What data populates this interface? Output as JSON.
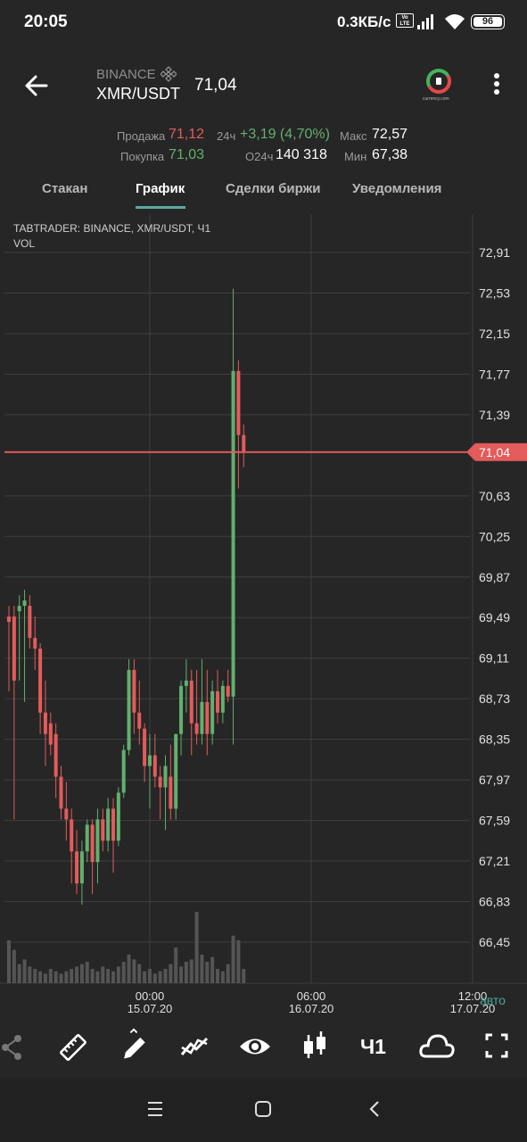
{
  "status_bar": {
    "time": "20:05",
    "net_speed": "0.3КБ/с",
    "volte": "Vo LTE",
    "battery": "96"
  },
  "header": {
    "exchange": "BINANCE",
    "pair": "XMR/USDT",
    "last_price": "71,04",
    "brand_text": "currency.com"
  },
  "stats": {
    "sell_label": "Продажа",
    "sell_value": "71,12",
    "buy_label": "Покупка",
    "buy_value": "71,03",
    "change_label": "24ч",
    "change_value": "+3,19 (4,70%)",
    "volume_label": "О24ч",
    "volume_value": "140 318",
    "max_label": "Макс",
    "max_value": "72,57",
    "min_label": "Мин",
    "min_value": "67,38"
  },
  "tabs": [
    {
      "label": "Стакан"
    },
    {
      "label": "График"
    },
    {
      "label": "Сделки биржи"
    },
    {
      "label": "Уведомления"
    }
  ],
  "chart": {
    "title": "TABTRADER: BINANCE, XMR/USDT, Ч1",
    "vol_label": "VOL",
    "current_price_label": "71,04",
    "auto_label": "авто",
    "colors": {
      "up": "#62b06e",
      "down": "#e45b5b",
      "grid": "#3f3f3f",
      "price_line": "#e45b5b"
    }
  },
  "chart_data": {
    "type": "candlestick",
    "y_ticks": [
      "72,91",
      "72,53",
      "72,15",
      "71,77",
      "71,39",
      "70,63",
      "70,25",
      "69,87",
      "69,49",
      "69,11",
      "68,73",
      "68,35",
      "67,97",
      "67,59",
      "67,21",
      "66,83",
      "66,45"
    ],
    "x_ticks": [
      {
        "time": "00:00",
        "date": "15.07.20"
      },
      {
        "time": "06:00",
        "date": "16.07.20"
      },
      {
        "time": "12:00",
        "date": "17.07.20"
      }
    ],
    "current_price": 71.04,
    "candles": [
      {
        "o": 69.5,
        "h": 69.6,
        "l": 68.8,
        "c": 69.45
      },
      {
        "o": 69.5,
        "h": 69.6,
        "l": 67.6,
        "c": 68.9
      },
      {
        "o": 69.55,
        "h": 69.7,
        "l": 68.9,
        "c": 69.6
      },
      {
        "o": 69.6,
        "h": 69.75,
        "l": 68.7,
        "c": 69.65
      },
      {
        "o": 69.6,
        "h": 69.7,
        "l": 69.2,
        "c": 69.3
      },
      {
        "o": 69.3,
        "h": 69.5,
        "l": 69.0,
        "c": 69.2
      },
      {
        "o": 69.2,
        "h": 69.25,
        "l": 68.4,
        "c": 68.6
      },
      {
        "o": 68.6,
        "h": 68.9,
        "l": 68.1,
        "c": 68.4
      },
      {
        "o": 68.5,
        "h": 68.6,
        "l": 68.2,
        "c": 68.3
      },
      {
        "o": 68.4,
        "h": 68.5,
        "l": 67.8,
        "c": 68.0
      },
      {
        "o": 68.0,
        "h": 68.1,
        "l": 67.6,
        "c": 67.7
      },
      {
        "o": 67.7,
        "h": 67.95,
        "l": 67.4,
        "c": 67.6
      },
      {
        "o": 67.6,
        "h": 67.7,
        "l": 67.0,
        "c": 67.3
      },
      {
        "o": 67.3,
        "h": 67.5,
        "l": 66.9,
        "c": 67.0
      },
      {
        "o": 67.0,
        "h": 67.4,
        "l": 66.8,
        "c": 67.3
      },
      {
        "o": 67.3,
        "h": 67.6,
        "l": 67.2,
        "c": 67.55
      },
      {
        "o": 67.55,
        "h": 67.6,
        "l": 66.9,
        "c": 67.2
      },
      {
        "o": 67.2,
        "h": 67.7,
        "l": 67.0,
        "c": 67.6
      },
      {
        "o": 67.6,
        "h": 67.7,
        "l": 67.3,
        "c": 67.4
      },
      {
        "o": 67.4,
        "h": 67.8,
        "l": 67.3,
        "c": 67.7
      },
      {
        "o": 67.7,
        "h": 67.8,
        "l": 67.1,
        "c": 67.4
      },
      {
        "o": 67.4,
        "h": 67.9,
        "l": 67.35,
        "c": 67.85
      },
      {
        "o": 67.85,
        "h": 68.3,
        "l": 67.8,
        "c": 68.25
      },
      {
        "o": 68.25,
        "h": 69.1,
        "l": 68.2,
        "c": 69.0
      },
      {
        "o": 69.0,
        "h": 69.1,
        "l": 68.4,
        "c": 68.6
      },
      {
        "o": 68.6,
        "h": 68.9,
        "l": 68.3,
        "c": 68.45
      },
      {
        "o": 68.45,
        "h": 68.5,
        "l": 67.95,
        "c": 68.1
      },
      {
        "o": 68.1,
        "h": 68.4,
        "l": 67.7,
        "c": 68.2
      },
      {
        "o": 68.2,
        "h": 68.4,
        "l": 67.9,
        "c": 68.0
      },
      {
        "o": 68.0,
        "h": 68.1,
        "l": 67.6,
        "c": 67.9
      },
      {
        "o": 67.9,
        "h": 68.2,
        "l": 67.5,
        "c": 68.1
      },
      {
        "o": 68.0,
        "h": 68.3,
        "l": 67.6,
        "c": 67.7
      },
      {
        "o": 67.7,
        "h": 68.4,
        "l": 67.6,
        "c": 68.4
      },
      {
        "o": 68.4,
        "h": 68.9,
        "l": 68.2,
        "c": 68.85
      },
      {
        "o": 68.85,
        "h": 69.1,
        "l": 68.6,
        "c": 68.9
      },
      {
        "o": 68.9,
        "h": 69.0,
        "l": 68.2,
        "c": 68.5
      },
      {
        "o": 68.5,
        "h": 69.0,
        "l": 68.3,
        "c": 68.4
      },
      {
        "o": 68.4,
        "h": 69.1,
        "l": 68.3,
        "c": 68.7
      },
      {
        "o": 68.7,
        "h": 69.0,
        "l": 68.2,
        "c": 68.4
      },
      {
        "o": 68.4,
        "h": 68.9,
        "l": 68.3,
        "c": 68.8
      },
      {
        "o": 68.8,
        "h": 69.0,
        "l": 68.5,
        "c": 68.6
      },
      {
        "o": 68.6,
        "h": 68.9,
        "l": 68.5,
        "c": 68.85
      },
      {
        "o": 68.85,
        "h": 69.0,
        "l": 68.7,
        "c": 68.75
      },
      {
        "o": 68.75,
        "h": 72.57,
        "l": 68.3,
        "c": 71.8
      },
      {
        "o": 71.8,
        "h": 71.9,
        "l": 70.7,
        "c": 71.2
      },
      {
        "o": 71.2,
        "h": 71.3,
        "l": 70.9,
        "c": 71.04
      }
    ],
    "volumes": [
      0.18,
      0.14,
      0.08,
      0.1,
      0.07,
      0.06,
      0.05,
      0.04,
      0.06,
      0.05,
      0.04,
      0.05,
      0.06,
      0.07,
      0.08,
      0.09,
      0.06,
      0.05,
      0.07,
      0.06,
      0.05,
      0.07,
      0.09,
      0.12,
      0.1,
      0.08,
      0.05,
      0.06,
      0.04,
      0.05,
      0.06,
      0.08,
      0.15,
      0.07,
      0.09,
      0.1,
      0.3,
      0.12,
      0.09,
      0.11,
      0.06,
      0.05,
      0.08,
      0.2,
      0.18,
      0.06
    ]
  },
  "toolbar": {
    "interval_label": "Ч1"
  }
}
